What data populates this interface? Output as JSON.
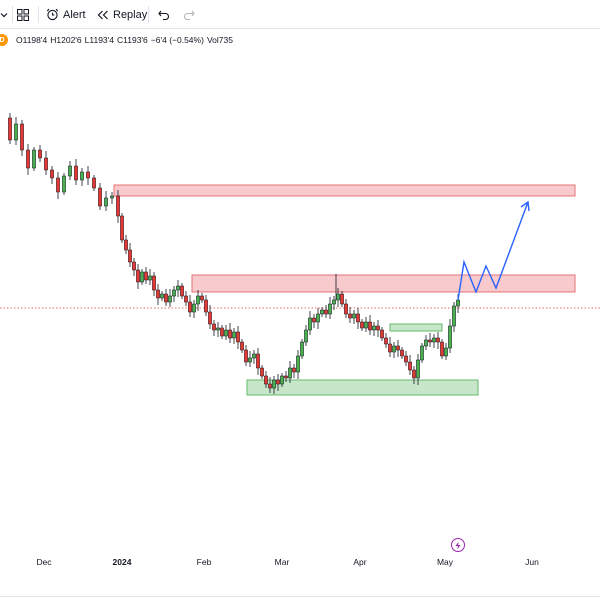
{
  "toolbar": {
    "alert_label": "Alert",
    "replay_label": "Replay",
    "icons": [
      "chevron-down-icon",
      "grid-layout-icon",
      "alarm-clock-icon",
      "replay-icon",
      "undo-icon",
      "redo-icon"
    ]
  },
  "legend": {
    "symbol_badge": "D",
    "open": "O1198'4",
    "high": "H1202'6",
    "low": "L1193'4",
    "close": "C1193'6",
    "change": "−6'4 (−0.54%)",
    "volume": "Vol735"
  },
  "time_axis": {
    "ticks": [
      {
        "label": "Dec",
        "bold": false
      },
      {
        "label": "2024",
        "bold": true
      },
      {
        "label": "Feb",
        "bold": false
      },
      {
        "label": "Mar",
        "bold": false
      },
      {
        "label": "Apr",
        "bold": false
      },
      {
        "label": "May",
        "bold": false
      },
      {
        "label": "Jun",
        "bold": false
      }
    ]
  },
  "colors": {
    "up_candle": "#4caf50",
    "down_candle": "#e53935",
    "resistance_zone_fill": "#f8c9cd",
    "resistance_zone_border": "#e57373",
    "support_zone_fill": "#c8e6c9",
    "support_zone_border": "#66bb6a",
    "projection_line": "#2962ff",
    "last_price_line": "#e53935",
    "event_marker": "#9c27b0"
  },
  "chart_data": {
    "type": "candlestick",
    "x_range": [
      "2023-11-20",
      "2024-06-20"
    ],
    "grid": false,
    "price_axis_visible": false,
    "zones": [
      {
        "kind": "resistance",
        "from": "2023-12-07",
        "to": "2024-06-15"
      },
      {
        "kind": "resistance",
        "from": "2024-01-28",
        "to": "2024-06-15"
      },
      {
        "kind": "support",
        "from": "2024-02-20",
        "to": "2024-05-12"
      },
      {
        "kind": "support",
        "from": "2024-04-10",
        "to": "2024-04-30"
      }
    ],
    "projection": "zigzag up from May 2024 toward upper resistance zone",
    "last_price_line": true
  }
}
